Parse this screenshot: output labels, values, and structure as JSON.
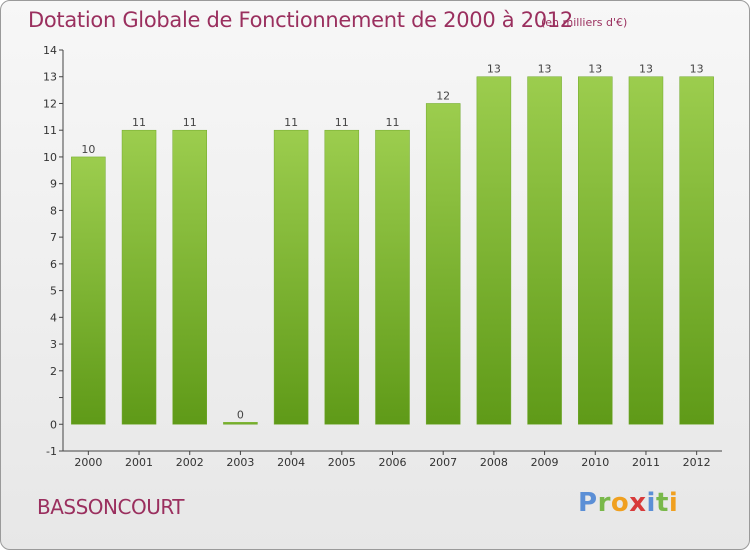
{
  "title": "Dotation Globale de Fonctionnement de 2000 à 2012",
  "unit_note": "(en milliers d'€)",
  "commune": "BASSONCOURT",
  "logo_text": "Proxiti",
  "colors": {
    "bar_top": "#9ccd4e",
    "bar_bottom": "#5f9a18",
    "title": "#9a2f5e"
  },
  "chart_data": {
    "type": "bar",
    "title": "Dotation Globale de Fonctionnement de 2000 à 2012",
    "xlabel": "",
    "ylabel": "",
    "categories": [
      "2000",
      "2001",
      "2002",
      "2003",
      "2004",
      "2005",
      "2006",
      "2007",
      "2008",
      "2009",
      "2010",
      "2011",
      "2012"
    ],
    "values": [
      10,
      11,
      11,
      0,
      11,
      11,
      11,
      12,
      13,
      13,
      13,
      13,
      13
    ],
    "ylim": [
      -1,
      14
    ],
    "yticks": [
      -1,
      0,
      1,
      2,
      3,
      4,
      5,
      6,
      7,
      8,
      9,
      10,
      11,
      12,
      13,
      14
    ],
    "ytick_labels": [
      "-1",
      "0",
      "",
      "2",
      "3",
      "4",
      "5",
      "6",
      "7",
      "8",
      "9",
      "10",
      "11",
      "12",
      "13",
      "14"
    ],
    "grid": false,
    "legend": "none"
  }
}
